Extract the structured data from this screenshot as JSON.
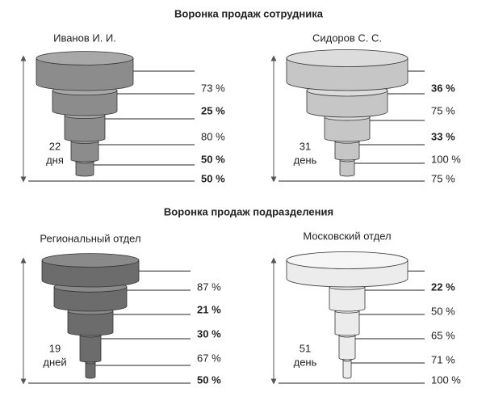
{
  "sections": [
    {
      "title": "Воронка продаж сотрудника",
      "funnels": [
        {
          "name": "Иванов И. И.",
          "days": "22",
          "days_unit": "дня",
          "labels": [
            {
              "text": "73 %",
              "bold": false
            },
            {
              "text": "25 %",
              "bold": true
            },
            {
              "text": "80 %",
              "bold": false
            },
            {
              "text": "50 %",
              "bold": true
            },
            {
              "text": "50 %",
              "bold": true
            }
          ]
        },
        {
          "name": "Сидоров С. С.",
          "days": "31",
          "days_unit": "день",
          "labels": [
            {
              "text": "36 %",
              "bold": true
            },
            {
              "text": "75 %",
              "bold": false
            },
            {
              "text": "33 %",
              "bold": true
            },
            {
              "text": "100 %",
              "bold": false
            },
            {
              "text": "75 %",
              "bold": false
            }
          ]
        }
      ]
    },
    {
      "title": "Воронка продаж подразделения",
      "funnels": [
        {
          "name": "Региональный отдел",
          "days": "19",
          "days_unit": "дней",
          "labels": [
            {
              "text": "87 %",
              "bold": false
            },
            {
              "text": "21 %",
              "bold": true
            },
            {
              "text": "30 %",
              "bold": true
            },
            {
              "text": "67 %",
              "bold": false
            },
            {
              "text": "50 %",
              "bold": true
            }
          ]
        },
        {
          "name": "Московский отдел",
          "days": "51",
          "days_unit": "день",
          "labels": [
            {
              "text": "22 %",
              "bold": true
            },
            {
              "text": "50 %",
              "bold": false
            },
            {
              "text": "65 %",
              "bold": false
            },
            {
              "text": "71 %",
              "bold": false
            },
            {
              "text": "100 %",
              "bold": false
            }
          ]
        }
      ]
    }
  ]
}
